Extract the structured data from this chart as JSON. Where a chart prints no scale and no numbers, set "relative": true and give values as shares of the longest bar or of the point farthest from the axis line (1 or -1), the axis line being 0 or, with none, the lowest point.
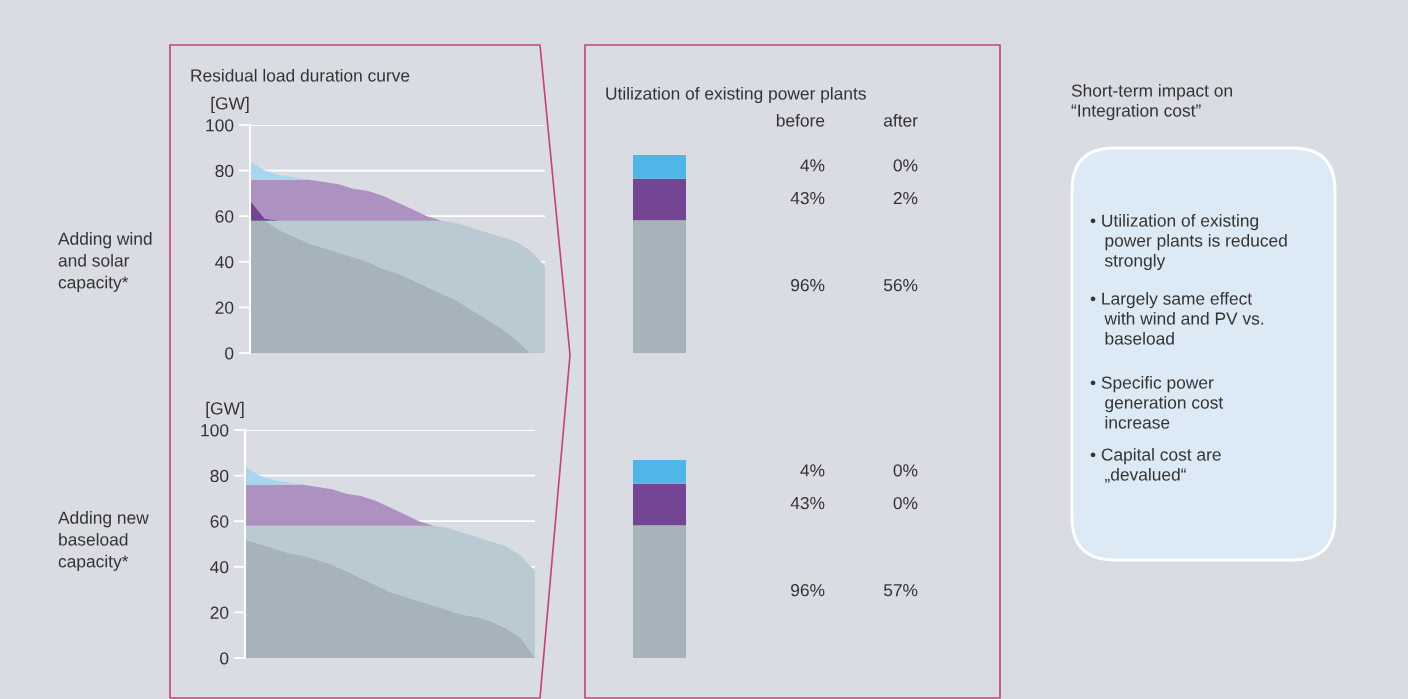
{
  "chart_data": [
    {
      "type": "area",
      "stacked": true,
      "title": "Residual load duration curve",
      "ylabel": "[GW]",
      "annotations": [
        "Adding wind\nand solar\ncapacity*"
      ],
      "categories": [
        null,
        null,
        null,
        null,
        null,
        null,
        null,
        null,
        null,
        null,
        null,
        null,
        null,
        null,
        null,
        null,
        null,
        null,
        null,
        null,
        null
      ],
      "series": [
        {
          "color": "#a6b3bb",
          "values": [
            58,
            58,
            54,
            51,
            48,
            46,
            44,
            42,
            40,
            37,
            35,
            32,
            29,
            26,
            23,
            19,
            15,
            11,
            6,
            0,
            0
          ]
        },
        {
          "color": "#b9cad2",
          "values": [
            null,
            0,
            4,
            7,
            10,
            12,
            14,
            16,
            18,
            21,
            23,
            26,
            29,
            32,
            34,
            36,
            38,
            40,
            43,
            45,
            38
          ]
        },
        {
          "color": "#734593",
          "values": [
            9,
            1,
            0,
            null,
            null,
            null,
            null,
            null,
            null,
            null,
            null,
            null,
            null,
            null,
            null,
            null,
            null,
            null,
            null,
            null,
            null
          ]
        },
        {
          "color": "#ad91c0",
          "values": [
            9,
            17,
            18,
            18,
            18,
            17,
            16,
            14,
            13,
            11,
            8,
            5,
            2,
            0,
            null,
            null,
            null,
            null,
            null,
            null,
            null
          ]
        },
        {
          "color": "#a8d5f0",
          "values": [
            8,
            4,
            2,
            1,
            0,
            null,
            null,
            null,
            null,
            null,
            null,
            null,
            null,
            null,
            null,
            null,
            null,
            null,
            null,
            null,
            null
          ]
        }
      ],
      "ylim": [
        0,
        100
      ],
      "yticks": [
        0,
        20,
        40,
        60,
        80,
        100
      ],
      "grid": "y",
      "tick_labels": "y"
    },
    {
      "type": "area",
      "stacked": true,
      "ylabel": "[GW]",
      "annotations": [
        "Adding new\nbaseload\ncapacity*"
      ],
      "categories": [
        null,
        null,
        null,
        null,
        null,
        null,
        null,
        null,
        null,
        null,
        null,
        null,
        null,
        null,
        null,
        null,
        null,
        null,
        null,
        null,
        null
      ],
      "series": [
        {
          "color": "#a6b3bb",
          "values": [
            52,
            50,
            48,
            46,
            45,
            43,
            41,
            38,
            35,
            32,
            29,
            27,
            25,
            23,
            21,
            19,
            18,
            16,
            13,
            9,
            0
          ]
        },
        {
          "color": "#b9cad2",
          "values": [
            6,
            8,
            10,
            12,
            13,
            15,
            17,
            20,
            23,
            26,
            29,
            31,
            33,
            35,
            36,
            36,
            35,
            35,
            36,
            36,
            38
          ]
        },
        {
          "color": "#ad91c0",
          "values": [
            18,
            18,
            18,
            18,
            18,
            17,
            16,
            14,
            13,
            11,
            8,
            5,
            2,
            0,
            null,
            null,
            null,
            null,
            null,
            null,
            null
          ]
        },
        {
          "color": "#a8d5f0",
          "values": [
            8,
            4,
            2,
            1,
            0,
            null,
            null,
            null,
            null,
            null,
            null,
            null,
            null,
            null,
            null,
            null,
            null,
            null,
            null,
            null,
            null
          ]
        }
      ],
      "ylim": [
        0,
        100
      ],
      "yticks": [
        0,
        20,
        40,
        60,
        80,
        100
      ],
      "grid": "y",
      "tick_labels": "y"
    },
    {
      "type": "bar",
      "stacked": true,
      "relative": true,
      "title": "Utilization of existing power plants",
      "categories": [
        null
      ],
      "series": [
        {
          "color": "#a6b3bb",
          "values": [
            0.67
          ]
        },
        {
          "color": "#734593",
          "values": [
            0.21
          ]
        },
        {
          "color": "#50b6e8",
          "values": [
            0.12
          ]
        }
      ],
      "annotations": [
        "before",
        "after",
        "4%",
        "0%",
        "43%",
        "2%",
        "96%",
        "56%"
      ]
    },
    {
      "type": "bar",
      "stacked": true,
      "relative": true,
      "categories": [
        null
      ],
      "series": [
        {
          "color": "#a6b3bb",
          "values": [
            0.67
          ]
        },
        {
          "color": "#734593",
          "values": [
            0.21
          ]
        },
        {
          "color": "#50b6e8",
          "values": [
            0.12
          ]
        }
      ],
      "annotations": [
        "4%",
        "0%",
        "43%",
        "0%",
        "96%",
        "57%"
      ]
    },
    {
      "type": "other",
      "title": "Short-term impact on\n“Integration cost”",
      "annotations": [
        "• Utilization of existing\n   power plants is reduced\n   strongly",
        "• Largely same effect\n   with wind and PV vs.\n   baseload",
        "• Specific power\n   generation cost\n   increase",
        "• Capital cost are\n   „devalued“"
      ]
    }
  ]
}
